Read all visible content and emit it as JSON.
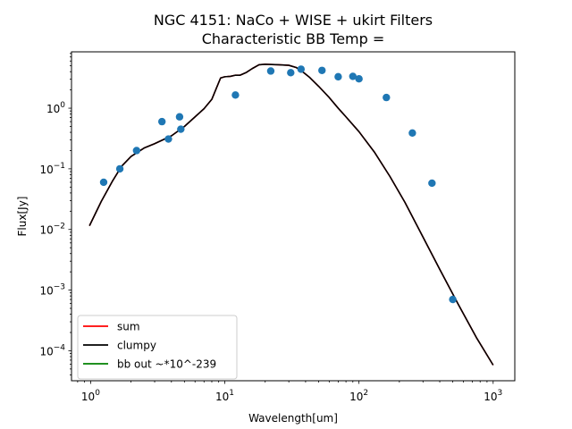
{
  "chart_data": {
    "type": "scatter",
    "title": "NGC 4151: NaCo + WISE + ukirt Filters",
    "subtitle": "Characteristic BB Temp =",
    "xlabel": "Wavelength[um]",
    "ylabel": "Flux[Jy]",
    "xscale": "log",
    "yscale": "log",
    "xlim": [
      0.72,
      1450
    ],
    "ylim": [
      3.2e-05,
      8.5
    ],
    "x_ticks": [
      {
        "value": 1,
        "base": "10",
        "exp": "0"
      },
      {
        "value": 10,
        "base": "10",
        "exp": "1"
      },
      {
        "value": 100,
        "base": "10",
        "exp": "2"
      },
      {
        "value": 1000,
        "base": "10",
        "exp": "3"
      }
    ],
    "y_ticks": [
      {
        "value": 0.0001,
        "base": "10",
        "exp": "−4"
      },
      {
        "value": 0.001,
        "base": "10",
        "exp": "−3"
      },
      {
        "value": 0.01,
        "base": "10",
        "exp": "−2"
      },
      {
        "value": 0.1,
        "base": "10",
        "exp": "−1"
      },
      {
        "value": 1,
        "base": "10",
        "exp": "0"
      }
    ],
    "legend_position": "lower-left",
    "series": [
      {
        "name": "sum",
        "kind": "line",
        "color": "#ff0000",
        "x": [
          0.98,
          1.2,
          1.45,
          1.7,
          2.0,
          2.5,
          3.0,
          4.0,
          5.0,
          6.0,
          7.0,
          8.0,
          8.7,
          9.3,
          10.0,
          11.0,
          12.0,
          13.0,
          14.5,
          16.0,
          18.0,
          20.0,
          25.0,
          30.0,
          34.0,
          38.0,
          43.0,
          50.0,
          60.0,
          70.0,
          80.0,
          100.0,
          130.0,
          170.0,
          220.0,
          300.0,
          400.0,
          550.0,
          750.0,
          1000.0
        ],
        "y": [
          0.0115,
          0.029,
          0.062,
          0.11,
          0.16,
          0.22,
          0.26,
          0.35,
          0.5,
          0.72,
          0.98,
          1.4,
          2.2,
          3.15,
          3.3,
          3.35,
          3.5,
          3.5,
          3.9,
          4.5,
          5.2,
          5.3,
          5.2,
          5.1,
          4.7,
          4.0,
          3.2,
          2.3,
          1.5,
          1.0,
          0.72,
          0.41,
          0.19,
          0.075,
          0.028,
          0.0075,
          0.0022,
          0.00058,
          0.000165,
          5.8e-05
        ]
      },
      {
        "name": "clumpy",
        "kind": "line",
        "color": "#000000",
        "x": [
          0.98,
          1.2,
          1.45,
          1.7,
          2.0,
          2.5,
          3.0,
          4.0,
          5.0,
          6.0,
          7.0,
          8.0,
          8.7,
          9.3,
          10.0,
          11.0,
          12.0,
          13.0,
          14.5,
          16.0,
          18.0,
          20.0,
          25.0,
          30.0,
          34.0,
          38.0,
          43.0,
          50.0,
          60.0,
          70.0,
          80.0,
          100.0,
          130.0,
          170.0,
          220.0,
          300.0,
          400.0,
          550.0,
          750.0,
          1000.0
        ],
        "y": [
          0.0115,
          0.029,
          0.062,
          0.11,
          0.16,
          0.22,
          0.26,
          0.35,
          0.5,
          0.72,
          0.98,
          1.4,
          2.2,
          3.15,
          3.3,
          3.35,
          3.5,
          3.5,
          3.9,
          4.5,
          5.2,
          5.3,
          5.2,
          5.1,
          4.7,
          4.0,
          3.2,
          2.3,
          1.5,
          1.0,
          0.72,
          0.41,
          0.19,
          0.075,
          0.028,
          0.0075,
          0.0022,
          0.00058,
          0.000165,
          5.8e-05
        ]
      },
      {
        "name": "bb out ~*10^-239",
        "kind": "line",
        "color": "#008000",
        "x": [],
        "y": []
      },
      {
        "name": "",
        "kind": "points",
        "color": "#1f77b4",
        "x": [
          1.25,
          1.65,
          2.2,
          3.4,
          3.8,
          4.6,
          4.7,
          12,
          22,
          31,
          37,
          53,
          70,
          90,
          100,
          160,
          250,
          350,
          500
        ],
        "y": [
          0.06,
          0.1,
          0.2,
          0.6,
          0.31,
          0.72,
          0.45,
          1.65,
          4.1,
          3.85,
          4.4,
          4.2,
          3.3,
          3.35,
          3.05,
          1.5,
          0.39,
          0.058,
          0.0007
        ]
      }
    ]
  }
}
